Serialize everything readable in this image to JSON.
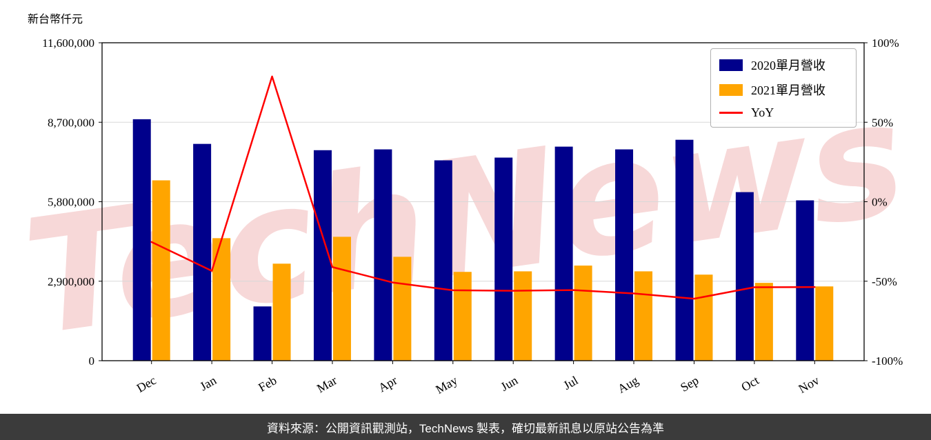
{
  "page": {
    "unit_label": "新台幣仟元",
    "watermark": "TechNews",
    "footer": "資料來源：公開資訊觀測站，TechNews 製表，確切最新訊息以原站公告為準"
  },
  "chart_data": {
    "type": "bar+line",
    "title": "",
    "categories": [
      "Dec",
      "Jan",
      "Feb",
      "Mar",
      "Apr",
      "May",
      "Jun",
      "Jul",
      "Aug",
      "Sep",
      "Oct",
      "Nov"
    ],
    "series": [
      {
        "name": "2020單月營收",
        "type": "bar",
        "axis": "left",
        "color": "#00008B",
        "values": [
          8810000,
          7910000,
          1980000,
          7680000,
          7710000,
          7310000,
          7410000,
          7810000,
          7710000,
          8060000,
          6150000,
          5850000
        ]
      },
      {
        "name": "2021單月營收",
        "type": "bar",
        "axis": "left",
        "color": "#FFA500",
        "values": [
          6580000,
          4470000,
          3540000,
          4520000,
          3790000,
          3240000,
          3260000,
          3470000,
          3260000,
          3140000,
          2840000,
          2710000
        ]
      },
      {
        "name": "YoY",
        "type": "line",
        "axis": "right",
        "color": "#FF0000",
        "values": [
          -25.3,
          -43.5,
          78.8,
          -41.1,
          -50.8,
          -55.7,
          -56.0,
          -55.6,
          -57.7,
          -61.0,
          -53.8,
          -53.7
        ]
      }
    ],
    "left_axis": {
      "min": 0,
      "max": 11600000,
      "ticks": [
        0,
        2900000,
        5800000,
        8700000,
        11600000
      ],
      "labels": [
        "0",
        "2,900,000",
        "5,800,000",
        "8,700,000",
        "11,600,000"
      ]
    },
    "right_axis": {
      "min": -100,
      "max": 100,
      "ticks": [
        -100,
        -50,
        0,
        50,
        100
      ],
      "labels": [
        "-100%",
        "-50%",
        "0%",
        "50%",
        "100%"
      ]
    },
    "legend_position": "top-right",
    "grid": true,
    "watermark_color": "#e57373"
  }
}
